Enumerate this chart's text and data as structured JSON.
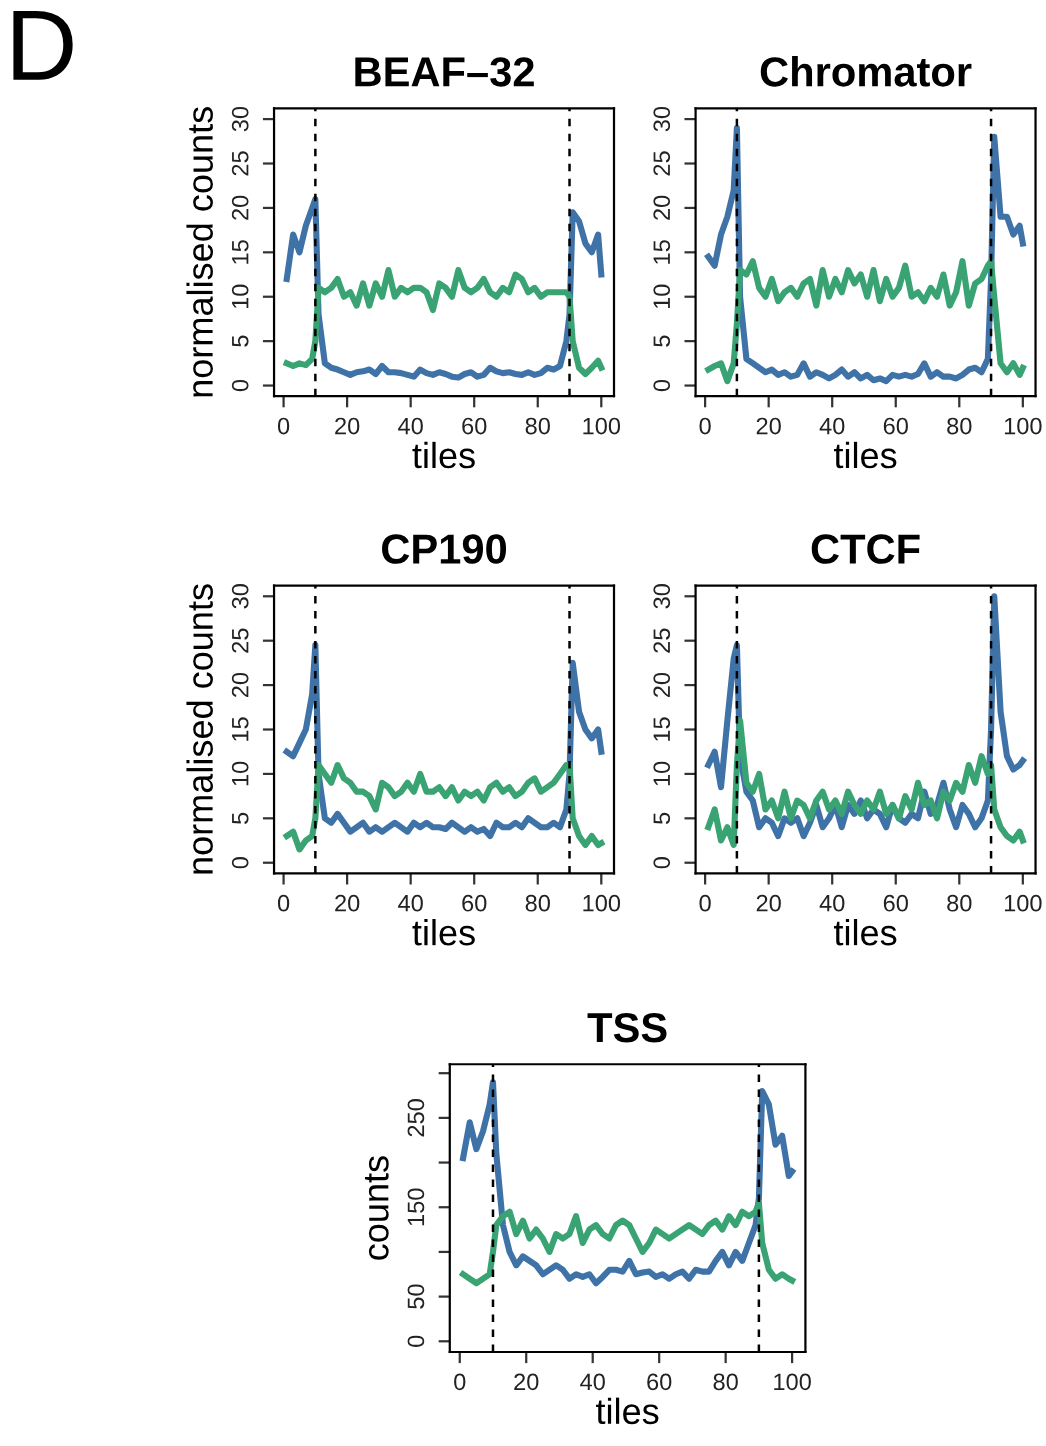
{
  "chart_data": [
    {
      "type": "line",
      "title": "BEAF–32",
      "xlabel": "tiles",
      "ylabel": "normalised counts",
      "annotations": [
        "D"
      ],
      "x": [
        1,
        3,
        5,
        7,
        9,
        10,
        11,
        13,
        15,
        17,
        19,
        21,
        23,
        25,
        27,
        29,
        31,
        33,
        35,
        37,
        39,
        41,
        43,
        45,
        47,
        49,
        51,
        53,
        55,
        57,
        59,
        61,
        63,
        65,
        67,
        69,
        71,
        73,
        75,
        77,
        79,
        81,
        83,
        85,
        87,
        89,
        90,
        91,
        93,
        95,
        97,
        99,
        100
      ],
      "series": [
        {
          "color": "#3f73a8",
          "values": [
            12,
            17,
            15,
            18,
            20,
            21,
            8,
            2.5,
            2,
            1.8,
            1.5,
            1.2,
            1.5,
            1.6,
            1.8,
            1.3,
            2.2,
            1.5,
            1.5,
            1.4,
            1.2,
            1.0,
            1.8,
            1.4,
            1.2,
            1.5,
            1.3,
            1.0,
            0.9,
            1.3,
            1.5,
            1.0,
            1.2,
            2.0,
            1.6,
            1.4,
            1.5,
            1.3,
            1.2,
            1.5,
            1.2,
            1.4,
            2.0,
            1.8,
            2.2,
            5,
            8,
            19.5,
            18.5,
            16,
            15,
            17,
            12.5
          ]
        },
        {
          "color": "#3aa373",
          "values": [
            2.5,
            2.2,
            2.5,
            2.3,
            3,
            5,
            11,
            10.5,
            11,
            12,
            10,
            10.5,
            9,
            11.5,
            9,
            11.5,
            10,
            13,
            10,
            11,
            10.5,
            11,
            11,
            10.5,
            8.5,
            11.5,
            11,
            10,
            13,
            11,
            10.5,
            11,
            12,
            10.5,
            10,
            11,
            10.5,
            12.5,
            12,
            10.5,
            11,
            10,
            10.5,
            10.5,
            10.5,
            10.5,
            10,
            5,
            2,
            1.3,
            2,
            2.8,
            2
          ]
        }
      ],
      "xlim": [
        -3,
        104
      ],
      "xticks": [
        0,
        20,
        40,
        60,
        80,
        100
      ],
      "ylim": [
        -1.2,
        31.2
      ],
      "yticks": [
        0,
        5,
        10,
        15,
        20,
        25,
        30
      ],
      "ref_lines": [
        {
          "axis": "x",
          "value": 10,
          "color": "#000000",
          "line_style": "dashed"
        },
        {
          "axis": "x",
          "value": 90,
          "color": "#000000",
          "line_style": "dashed"
        }
      ],
      "grid": false,
      "legend": false,
      "marker": "none",
      "line_style": "solid"
    },
    {
      "type": "line",
      "title": "Chromator",
      "xlabel": "tiles",
      "x": [
        1,
        3,
        5,
        7,
        9,
        10,
        11,
        13,
        15,
        17,
        19,
        21,
        23,
        25,
        27,
        29,
        31,
        33,
        35,
        37,
        39,
        41,
        43,
        45,
        47,
        49,
        51,
        53,
        55,
        57,
        59,
        61,
        63,
        65,
        67,
        69,
        71,
        73,
        75,
        77,
        79,
        81,
        83,
        85,
        87,
        89,
        90,
        91,
        93,
        95,
        97,
        99,
        100
      ],
      "series": [
        {
          "color": "#3f73a8",
          "values": [
            14.5,
            13.5,
            17,
            19,
            22,
            29,
            10,
            3,
            2.5,
            2,
            1.5,
            1.8,
            1.2,
            1.5,
            1,
            1.2,
            2.5,
            1,
            1.5,
            1.2,
            0.8,
            1.2,
            1.8,
            1,
            1.5,
            0.8,
            1.2,
            0.6,
            0.8,
            0.5,
            1.2,
            1,
            1.2,
            1.0,
            1.3,
            2.5,
            1,
            1.5,
            1,
            1,
            0.8,
            1.2,
            1.8,
            2,
            1.5,
            3,
            12,
            28,
            19,
            19,
            17,
            18,
            16
          ]
        },
        {
          "color": "#3aa373",
          "values": [
            1.8,
            2.2,
            2.5,
            0.5,
            2.5,
            7,
            13,
            12.5,
            14,
            11,
            10,
            12,
            9.5,
            10.5,
            11,
            10,
            11.5,
            12,
            9,
            13,
            10,
            12,
            10.5,
            13,
            11.5,
            12.5,
            10,
            13,
            9.5,
            12,
            10,
            11,
            13.5,
            10,
            10.5,
            9.5,
            11,
            10,
            12.5,
            9,
            10.5,
            14,
            9,
            11.5,
            12,
            13.5,
            14,
            10,
            2.5,
            1.5,
            2.5,
            1.2,
            2
          ]
        }
      ],
      "xlim": [
        -3,
        104
      ],
      "xticks": [
        0,
        20,
        40,
        60,
        80,
        100
      ],
      "ylim": [
        -1.2,
        31.2
      ],
      "yticks": [
        0,
        5,
        10,
        15,
        20,
        25,
        30
      ],
      "ref_lines": [
        {
          "axis": "x",
          "value": 10,
          "color": "#000000",
          "line_style": "dashed"
        },
        {
          "axis": "x",
          "value": 90,
          "color": "#000000",
          "line_style": "dashed"
        }
      ],
      "grid": false,
      "legend": false,
      "marker": "none",
      "line_style": "solid"
    },
    {
      "type": "line",
      "title": "CP190",
      "xlabel": "tiles",
      "ylabel": "normalised counts",
      "x": [
        1,
        3,
        5,
        7,
        9,
        10,
        11,
        13,
        15,
        17,
        19,
        21,
        23,
        25,
        27,
        29,
        31,
        33,
        35,
        37,
        39,
        41,
        43,
        45,
        47,
        49,
        51,
        53,
        55,
        57,
        59,
        61,
        63,
        65,
        67,
        69,
        71,
        73,
        75,
        77,
        79,
        81,
        83,
        85,
        87,
        89,
        90,
        91,
        93,
        95,
        97,
        99,
        100
      ],
      "series": [
        {
          "color": "#3f73a8",
          "values": [
            12.5,
            12,
            13.5,
            15,
            19,
            24.5,
            10,
            5,
            4.5,
            5.5,
            4.5,
            3.5,
            4,
            4.5,
            3.5,
            4,
            3.5,
            4,
            4.5,
            4,
            3.5,
            4.5,
            4,
            4.5,
            4,
            4,
            3.8,
            4.5,
            4,
            3.5,
            4,
            3.5,
            3.8,
            3,
            4.5,
            4,
            4,
            4.5,
            4,
            5,
            4.5,
            4,
            4,
            4.5,
            4,
            6,
            10,
            22.5,
            17,
            15,
            14,
            15,
            12.5
          ]
        },
        {
          "color": "#3aa373",
          "values": [
            3,
            3.5,
            1.5,
            2.5,
            3,
            5,
            11,
            10,
            9,
            11,
            9.5,
            9,
            8,
            8,
            7.5,
            6,
            9,
            8.5,
            7.5,
            8,
            9,
            8,
            10,
            8,
            8,
            8.5,
            7.5,
            8.5,
            7,
            8,
            7.5,
            8,
            7,
            8.5,
            9,
            8,
            8.5,
            7.5,
            8,
            9,
            9.5,
            8,
            8.5,
            9,
            10,
            11,
            11,
            5,
            3,
            2,
            3,
            2,
            2.2
          ]
        }
      ],
      "xlim": [
        -3,
        104
      ],
      "xticks": [
        0,
        20,
        40,
        60,
        80,
        100
      ],
      "ylim": [
        -1.2,
        31.2
      ],
      "yticks": [
        0,
        5,
        10,
        15,
        20,
        25,
        30
      ],
      "ref_lines": [
        {
          "axis": "x",
          "value": 10,
          "color": "#000000",
          "line_style": "dashed"
        },
        {
          "axis": "x",
          "value": 90,
          "color": "#000000",
          "line_style": "dashed"
        }
      ],
      "grid": false,
      "legend": false,
      "marker": "none",
      "line_style": "solid"
    },
    {
      "type": "line",
      "title": "CTCF",
      "xlabel": "tiles",
      "x": [
        1,
        3,
        5,
        7,
        9,
        10,
        11,
        13,
        15,
        17,
        19,
        21,
        23,
        25,
        27,
        29,
        31,
        33,
        35,
        37,
        39,
        41,
        43,
        45,
        47,
        49,
        51,
        53,
        55,
        57,
        59,
        61,
        63,
        65,
        67,
        69,
        71,
        73,
        75,
        77,
        79,
        81,
        83,
        85,
        87,
        89,
        90,
        91,
        93,
        95,
        97,
        99,
        100
      ],
      "series": [
        {
          "color": "#3f73a8",
          "values": [
            11,
            12.5,
            8.5,
            16,
            23,
            24.5,
            12,
            8,
            7,
            4,
            5,
            4.5,
            3,
            5,
            4.5,
            5,
            3,
            4.5,
            6.5,
            4,
            5,
            6.5,
            4,
            6.5,
            5.5,
            7,
            5,
            6,
            5.5,
            4,
            6.5,
            5,
            4.5,
            5.5,
            5,
            8,
            5.5,
            6.5,
            9,
            6,
            4,
            6.5,
            5.5,
            4,
            5,
            7,
            15,
            30,
            17,
            12,
            10.5,
            11,
            11.5
          ]
        },
        {
          "color": "#3aa373",
          "values": [
            4,
            6,
            2.5,
            4,
            2,
            11,
            16,
            9,
            8,
            10,
            6,
            7,
            5,
            8,
            5,
            7,
            6.5,
            5,
            7,
            8,
            6,
            7,
            5.5,
            8,
            6.5,
            5.5,
            7,
            6,
            8,
            5.5,
            6.5,
            5,
            7.5,
            6,
            9,
            6.5,
            7,
            5,
            8,
            7,
            9,
            8,
            11,
            9,
            12,
            10,
            11,
            6,
            4,
            3,
            2.5,
            3.5,
            2.5
          ]
        }
      ],
      "xlim": [
        -3,
        104
      ],
      "xticks": [
        0,
        20,
        40,
        60,
        80,
        100
      ],
      "ylim": [
        -1.2,
        31.2
      ],
      "yticks": [
        0,
        5,
        10,
        15,
        20,
        25,
        30
      ],
      "ref_lines": [
        {
          "axis": "x",
          "value": 10,
          "color": "#000000",
          "line_style": "dashed"
        },
        {
          "axis": "x",
          "value": 90,
          "color": "#000000",
          "line_style": "dashed"
        }
      ],
      "grid": false,
      "legend": false,
      "marker": "none",
      "line_style": "solid"
    },
    {
      "type": "line",
      "title": "TSS",
      "xlabel": "tiles",
      "ylabel": "counts",
      "x": [
        1,
        3,
        5,
        7,
        9,
        10,
        11,
        13,
        15,
        17,
        19,
        21,
        23,
        25,
        27,
        29,
        31,
        33,
        35,
        37,
        39,
        41,
        43,
        45,
        47,
        49,
        51,
        53,
        55,
        57,
        59,
        61,
        63,
        65,
        67,
        69,
        71,
        73,
        75,
        77,
        79,
        81,
        83,
        85,
        87,
        89,
        90,
        91,
        93,
        95,
        97,
        99,
        100
      ],
      "series": [
        {
          "color": "#3f73a8",
          "values": [
            205,
            245,
            215,
            235,
            265,
            290,
            210,
            130,
            100,
            85,
            95,
            90,
            85,
            75,
            80,
            85,
            80,
            70,
            75,
            72,
            75,
            65,
            72,
            80,
            80,
            78,
            90,
            75,
            77,
            78,
            72,
            75,
            70,
            75,
            78,
            70,
            80,
            78,
            78,
            90,
            100,
            85,
            100,
            90,
            110,
            130,
            160,
            280,
            265,
            220,
            230,
            185,
            190
          ]
        },
        {
          "color": "#3aa373",
          "values": [
            75,
            70,
            65,
            70,
            75,
            100,
            130,
            140,
            145,
            120,
            135,
            115,
            125,
            115,
            100,
            120,
            115,
            120,
            140,
            110,
            125,
            130,
            120,
            115,
            130,
            135,
            130,
            115,
            100,
            110,
            125,
            120,
            115,
            120,
            125,
            130,
            125,
            120,
            130,
            135,
            125,
            140,
            130,
            145,
            140,
            145,
            155,
            110,
            80,
            70,
            75,
            70,
            68
          ]
        }
      ],
      "xlim": [
        -3,
        104
      ],
      "xticks": [
        0,
        20,
        40,
        60,
        80,
        100
      ],
      "ylim": [
        -12,
        310
      ],
      "yticks": [
        0,
        50,
        {
          "value": 100,
          "label": null
        },
        150,
        {
          "value": 200,
          "label": null
        },
        250,
        {
          "value": 300,
          "label": null
        }
      ],
      "ref_lines": [
        {
          "axis": "x",
          "value": 10,
          "color": "#000000",
          "line_style": "dashed"
        },
        {
          "axis": "x",
          "value": 90,
          "color": "#000000",
          "line_style": "dashed"
        }
      ],
      "grid": false,
      "legend": false,
      "marker": "none",
      "line_style": "solid"
    }
  ]
}
